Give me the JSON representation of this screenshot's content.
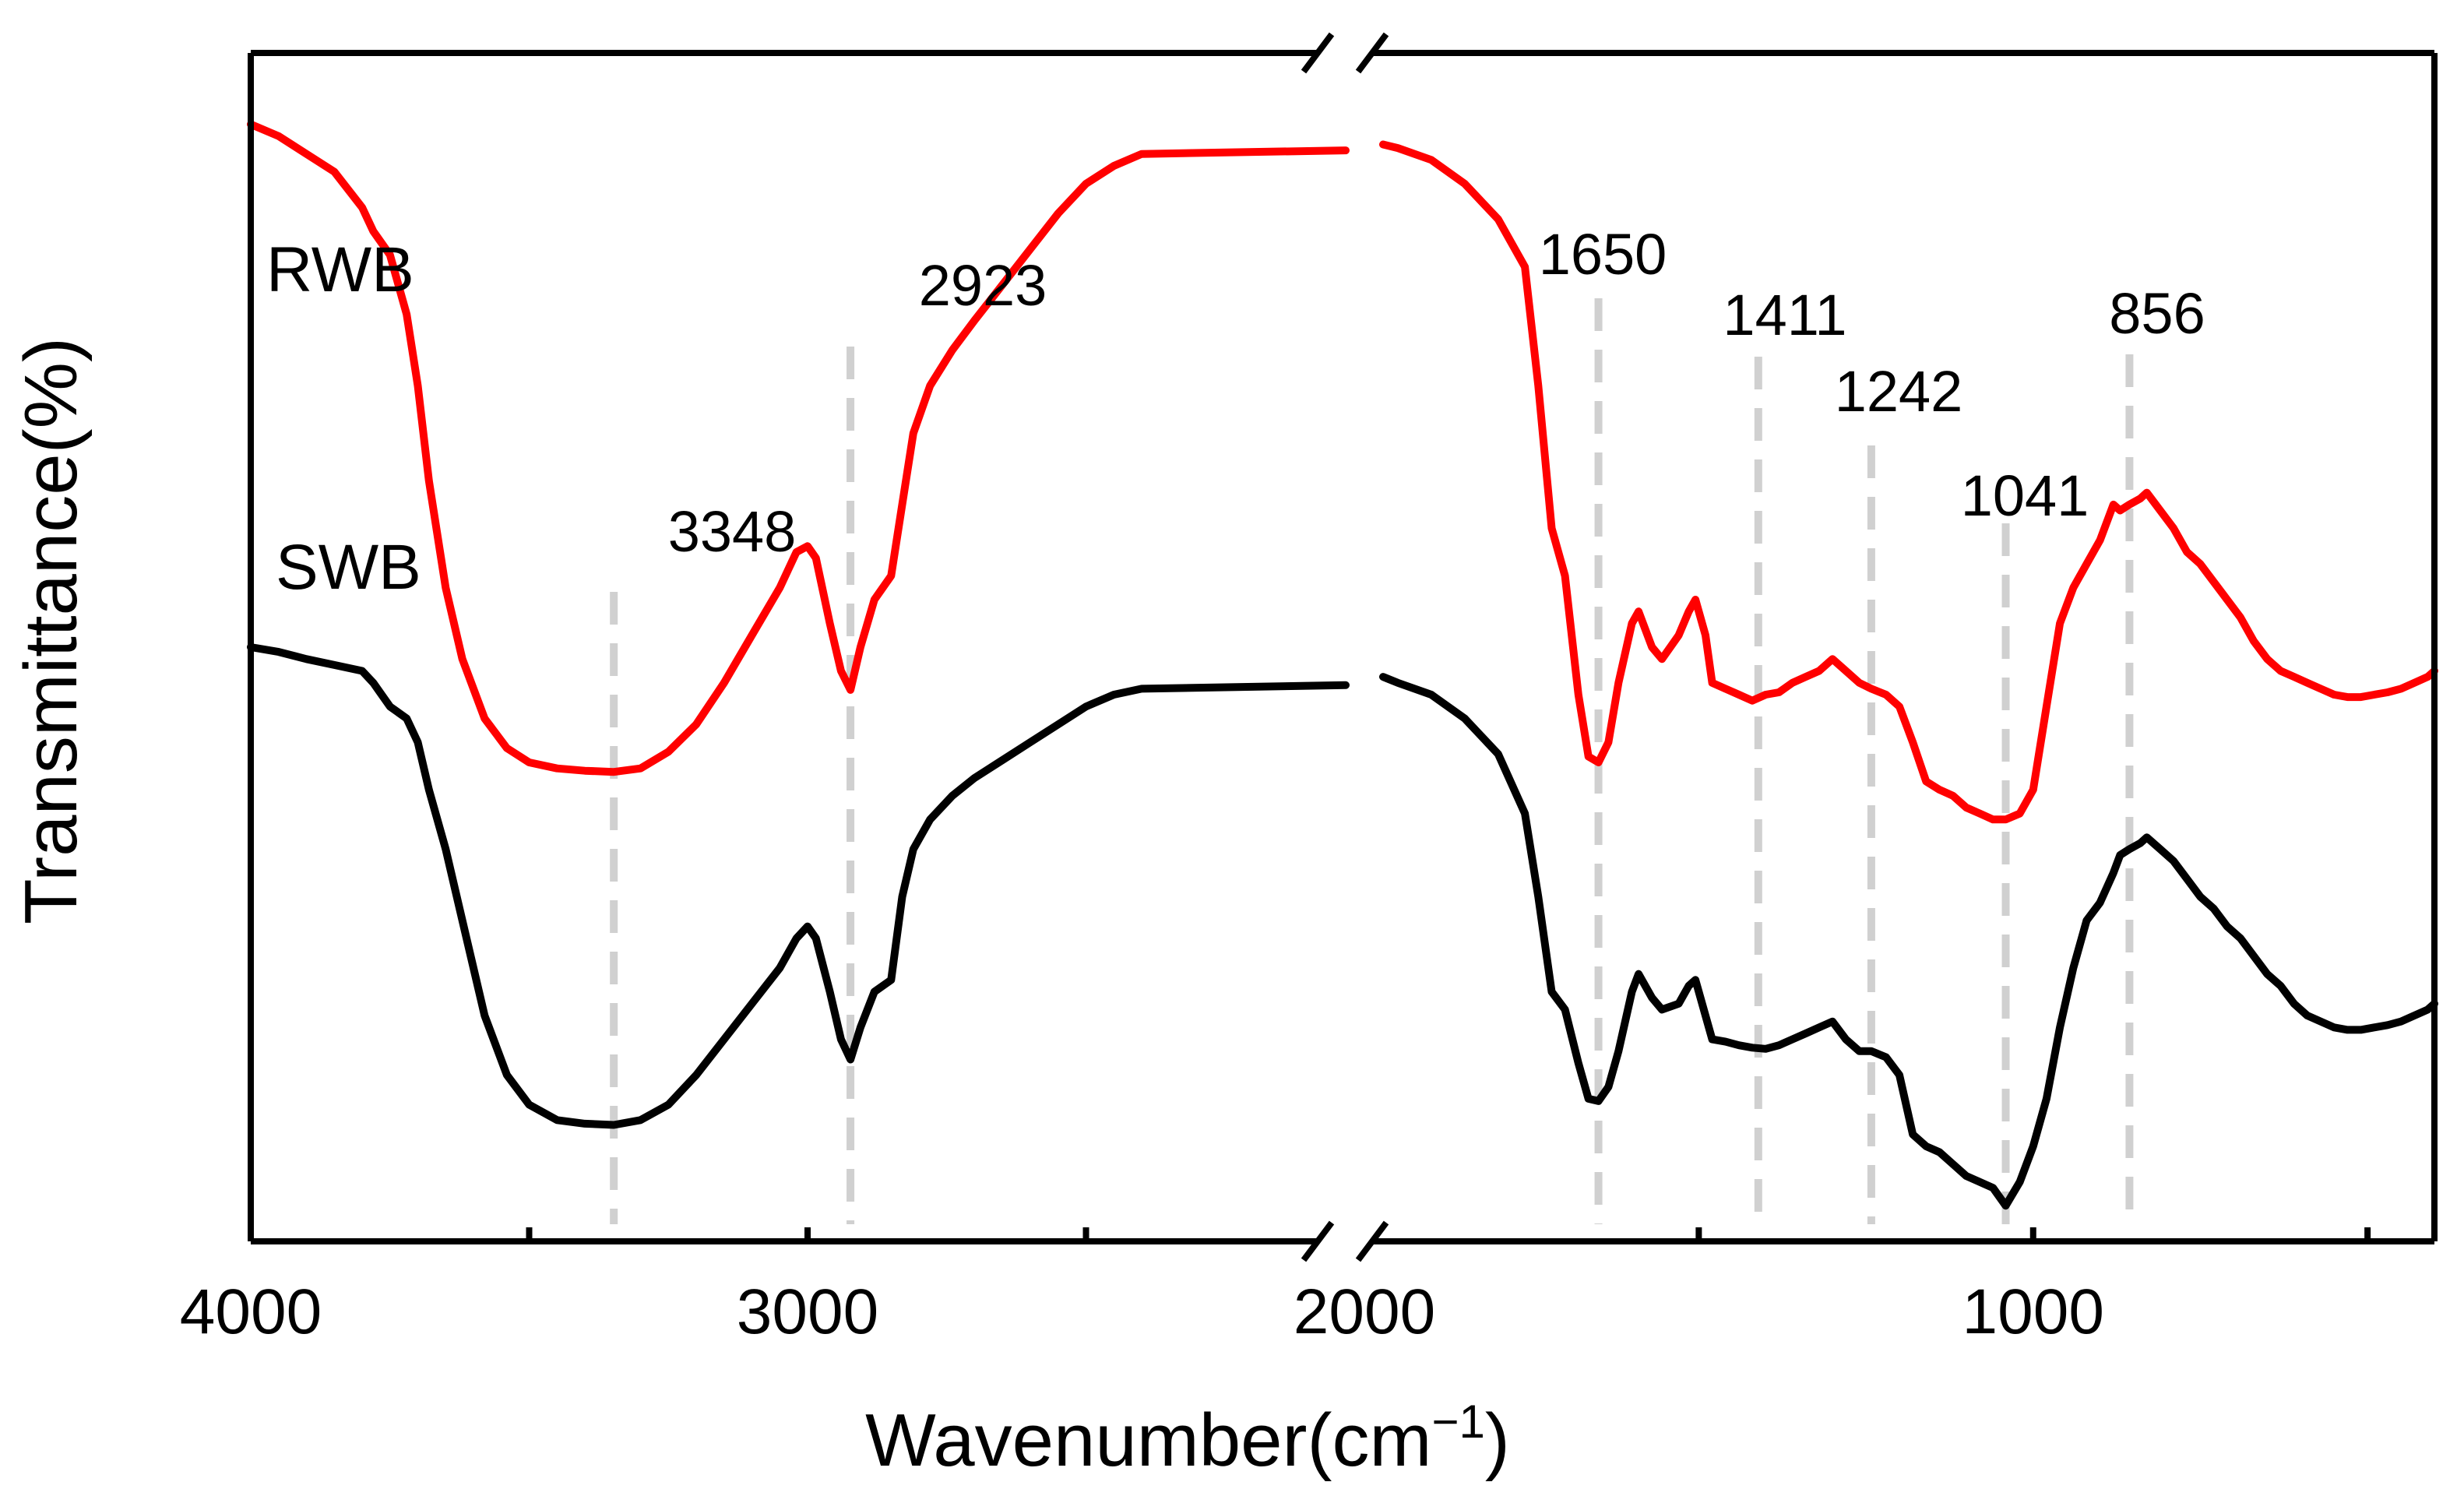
{
  "chart_data": {
    "type": "line",
    "xlabel": "Wavenumber(cm",
    "xlabel_superscript": "−1",
    "xlabel_close": ")",
    "ylabel": "Transmittance(%)",
    "x_axis": {
      "reversed": true,
      "broken": true,
      "segments": [
        [
          4000,
          2000
        ],
        [
          2000,
          400
        ]
      ],
      "ticks": [
        4000,
        3000,
        2000,
        1000
      ],
      "tick_labels": [
        "4000",
        "3000",
        "2000",
        "1000"
      ]
    },
    "y_axis": {
      "tick_labels": false,
      "ylim": [
        0,
        100
      ]
    },
    "grid": false,
    "peak_color": "#f7b940",
    "guide_color": "#d0d0d0",
    "peaks": [
      {
        "label": "3348",
        "x": 3348
      },
      {
        "label": "2923",
        "x": 2923
      },
      {
        "label": "1650",
        "x": 1650
      },
      {
        "label": "1411",
        "x": 1411
      },
      {
        "label": "1242",
        "x": 1242
      },
      {
        "label": "1041",
        "x": 1041
      },
      {
        "label": "856",
        "x": 856
      }
    ],
    "series": [
      {
        "name": "RWB",
        "color": "#ff0000",
        "points": [
          [
            4000,
            94
          ],
          [
            3950,
            93
          ],
          [
            3900,
            91.5
          ],
          [
            3850,
            90
          ],
          [
            3800,
            87
          ],
          [
            3780,
            85
          ],
          [
            3750,
            83
          ],
          [
            3720,
            78
          ],
          [
            3700,
            72
          ],
          [
            3680,
            64
          ],
          [
            3650,
            55
          ],
          [
            3620,
            49
          ],
          [
            3580,
            44
          ],
          [
            3540,
            41.5
          ],
          [
            3500,
            40.3
          ],
          [
            3450,
            39.8
          ],
          [
            3400,
            39.6
          ],
          [
            3348,
            39.5
          ],
          [
            3300,
            39.8
          ],
          [
            3250,
            41.2
          ],
          [
            3200,
            43.5
          ],
          [
            3150,
            47
          ],
          [
            3100,
            51
          ],
          [
            3050,
            55
          ],
          [
            3020,
            58
          ],
          [
            3000,
            58.5
          ],
          [
            2985,
            57.5
          ],
          [
            2960,
            52
          ],
          [
            2940,
            48
          ],
          [
            2923,
            46.4
          ],
          [
            2905,
            50
          ],
          [
            2880,
            54
          ],
          [
            2850,
            56
          ],
          [
            2830,
            62
          ],
          [
            2810,
            68
          ],
          [
            2780,
            72
          ],
          [
            2740,
            75
          ],
          [
            2700,
            77.5
          ],
          [
            2650,
            80.5
          ],
          [
            2600,
            83.5
          ],
          [
            2550,
            86.5
          ],
          [
            2500,
            89
          ],
          [
            2450,
            90.5
          ],
          [
            2400,
            91.5
          ],
          [
            2380,
            91.8
          ],
          [
            2000,
            92.3
          ],
          [
            1950,
            92
          ],
          [
            1900,
            91
          ],
          [
            1850,
            89
          ],
          [
            1800,
            86
          ],
          [
            1760,
            82
          ],
          [
            1740,
            72
          ],
          [
            1720,
            60
          ],
          [
            1700,
            56
          ],
          [
            1680,
            46
          ],
          [
            1665,
            40.8
          ],
          [
            1650,
            40.3
          ],
          [
            1635,
            42
          ],
          [
            1620,
            47
          ],
          [
            1600,
            52
          ],
          [
            1590,
            53
          ],
          [
            1570,
            50
          ],
          [
            1555,
            49
          ],
          [
            1530,
            51
          ],
          [
            1515,
            53
          ],
          [
            1505,
            54
          ],
          [
            1490,
            51
          ],
          [
            1480,
            47
          ],
          [
            1460,
            46.5
          ],
          [
            1440,
            46
          ],
          [
            1420,
            45.5
          ],
          [
            1400,
            46
          ],
          [
            1380,
            46.2
          ],
          [
            1360,
            47
          ],
          [
            1340,
            47.5
          ],
          [
            1320,
            48
          ],
          [
            1300,
            49
          ],
          [
            1280,
            48
          ],
          [
            1260,
            47
          ],
          [
            1242,
            46.5
          ],
          [
            1220,
            46
          ],
          [
            1200,
            45
          ],
          [
            1180,
            42
          ],
          [
            1160,
            38.7
          ],
          [
            1140,
            38
          ],
          [
            1120,
            37.5
          ],
          [
            1100,
            36.5
          ],
          [
            1080,
            36
          ],
          [
            1060,
            35.5
          ],
          [
            1041,
            35.5
          ],
          [
            1020,
            36
          ],
          [
            1000,
            38
          ],
          [
            980,
            45
          ],
          [
            960,
            52
          ],
          [
            940,
            55
          ],
          [
            920,
            57
          ],
          [
            900,
            59
          ],
          [
            880,
            62
          ],
          [
            870,
            61.5
          ],
          [
            856,
            62
          ],
          [
            840,
            62.5
          ],
          [
            830,
            63
          ],
          [
            810,
            61.5
          ],
          [
            790,
            60
          ],
          [
            770,
            58
          ],
          [
            750,
            57
          ],
          [
            730,
            55.5
          ],
          [
            710,
            54
          ],
          [
            690,
            52.5
          ],
          [
            670,
            50.5
          ],
          [
            650,
            49
          ],
          [
            630,
            48
          ],
          [
            610,
            47.5
          ],
          [
            590,
            47
          ],
          [
            570,
            46.5
          ],
          [
            550,
            46
          ],
          [
            530,
            45.8
          ],
          [
            510,
            45.8
          ],
          [
            490,
            46
          ],
          [
            470,
            46.2
          ],
          [
            450,
            46.5
          ],
          [
            430,
            47
          ],
          [
            410,
            47.5
          ],
          [
            400,
            48
          ]
        ]
      },
      {
        "name": "SWB",
        "color": "#000000",
        "points": [
          [
            4000,
            50
          ],
          [
            3950,
            49.6
          ],
          [
            3900,
            49
          ],
          [
            3850,
            48.5
          ],
          [
            3800,
            48
          ],
          [
            3780,
            47
          ],
          [
            3750,
            45
          ],
          [
            3720,
            44
          ],
          [
            3700,
            42
          ],
          [
            3680,
            38
          ],
          [
            3650,
            33
          ],
          [
            3620,
            27
          ],
          [
            3580,
            19
          ],
          [
            3540,
            14
          ],
          [
            3500,
            11.5
          ],
          [
            3450,
            10.2
          ],
          [
            3400,
            9.9
          ],
          [
            3348,
            9.8
          ],
          [
            3300,
            10.2
          ],
          [
            3250,
            11.5
          ],
          [
            3200,
            14
          ],
          [
            3150,
            17
          ],
          [
            3100,
            20
          ],
          [
            3050,
            23
          ],
          [
            3020,
            25.5
          ],
          [
            3000,
            26.5
          ],
          [
            2985,
            25.5
          ],
          [
            2960,
            21
          ],
          [
            2940,
            17
          ],
          [
            2923,
            15.3
          ],
          [
            2905,
            18
          ],
          [
            2880,
            21
          ],
          [
            2850,
            22
          ],
          [
            2830,
            29
          ],
          [
            2810,
            33
          ],
          [
            2780,
            35.5
          ],
          [
            2740,
            37.5
          ],
          [
            2700,
            39
          ],
          [
            2650,
            40.5
          ],
          [
            2600,
            42
          ],
          [
            2550,
            43.5
          ],
          [
            2500,
            45
          ],
          [
            2450,
            46
          ],
          [
            2400,
            46.5
          ],
          [
            2380,
            46.8
          ],
          [
            2000,
            47.5
          ],
          [
            1950,
            47
          ],
          [
            1900,
            46
          ],
          [
            1850,
            44
          ],
          [
            1800,
            41
          ],
          [
            1760,
            36
          ],
          [
            1740,
            29
          ],
          [
            1720,
            21
          ],
          [
            1700,
            19.5
          ],
          [
            1680,
            15
          ],
          [
            1665,
            12
          ],
          [
            1650,
            11.8
          ],
          [
            1635,
            13
          ],
          [
            1620,
            16
          ],
          [
            1600,
            21
          ],
          [
            1590,
            22.5
          ],
          [
            1570,
            20.5
          ],
          [
            1555,
            19.5
          ],
          [
            1530,
            20
          ],
          [
            1515,
            21.5
          ],
          [
            1505,
            22
          ],
          [
            1490,
            19
          ],
          [
            1480,
            17
          ],
          [
            1460,
            16.8
          ],
          [
            1440,
            16.5
          ],
          [
            1420,
            16.3
          ],
          [
            1400,
            16.2
          ],
          [
            1380,
            16.5
          ],
          [
            1360,
            17
          ],
          [
            1340,
            17.5
          ],
          [
            1320,
            18
          ],
          [
            1300,
            18.5
          ],
          [
            1280,
            17
          ],
          [
            1260,
            16
          ],
          [
            1242,
            16
          ],
          [
            1220,
            15.5
          ],
          [
            1200,
            14
          ],
          [
            1180,
            9
          ],
          [
            1160,
            8
          ],
          [
            1140,
            7.5
          ],
          [
            1120,
            6.5
          ],
          [
            1100,
            5.5
          ],
          [
            1080,
            5
          ],
          [
            1060,
            4.5
          ],
          [
            1041,
            3
          ],
          [
            1020,
            5
          ],
          [
            1000,
            8
          ],
          [
            980,
            12
          ],
          [
            960,
            18
          ],
          [
            940,
            23
          ],
          [
            920,
            27
          ],
          [
            900,
            28.5
          ],
          [
            880,
            31
          ],
          [
            870,
            32.5
          ],
          [
            856,
            33
          ],
          [
            840,
            33.5
          ],
          [
            830,
            34
          ],
          [
            810,
            33
          ],
          [
            790,
            32
          ],
          [
            770,
            30.5
          ],
          [
            750,
            29
          ],
          [
            730,
            28
          ],
          [
            710,
            26.5
          ],
          [
            690,
            25.5
          ],
          [
            670,
            24
          ],
          [
            650,
            22.5
          ],
          [
            630,
            21.5
          ],
          [
            610,
            20
          ],
          [
            590,
            19
          ],
          [
            570,
            18.5
          ],
          [
            550,
            18
          ],
          [
            530,
            17.8
          ],
          [
            510,
            17.8
          ],
          [
            490,
            18
          ],
          [
            470,
            18.2
          ],
          [
            450,
            18.5
          ],
          [
            430,
            19
          ],
          [
            410,
            19.5
          ],
          [
            400,
            20
          ]
        ]
      }
    ]
  }
}
